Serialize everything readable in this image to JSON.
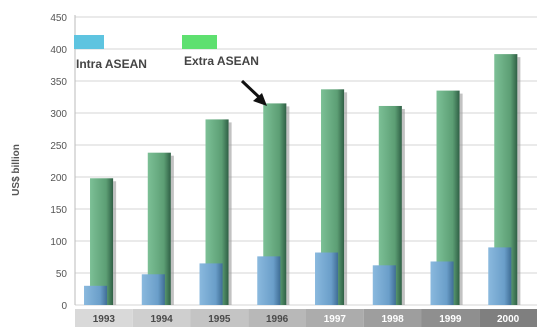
{
  "chart_data": {
    "type": "bar",
    "categories": [
      "1993",
      "1994",
      "1995",
      "1996",
      "1997",
      "1998",
      "1999",
      "2000"
    ],
    "series": [
      {
        "name": "Intra ASEAN",
        "values": [
          30,
          48,
          65,
          76,
          82,
          62,
          68,
          90
        ]
      },
      {
        "name": "Extra ASEAN",
        "values": [
          198,
          238,
          290,
          315,
          337,
          311,
          335,
          392
        ]
      }
    ],
    "ylabel": "US$ billion",
    "ylim": [
      0,
      450
    ],
    "yticks": [
      0,
      50,
      100,
      150,
      200,
      250,
      300,
      350,
      400,
      450
    ],
    "grid": true,
    "legend_position": "top-left",
    "colors": {
      "intra": "#6a9ec9",
      "intra_legend": "#5ec4e0",
      "extra": "#5c9e74",
      "extra_legend": "#5ee070",
      "grid": "#d6d6d6"
    }
  }
}
